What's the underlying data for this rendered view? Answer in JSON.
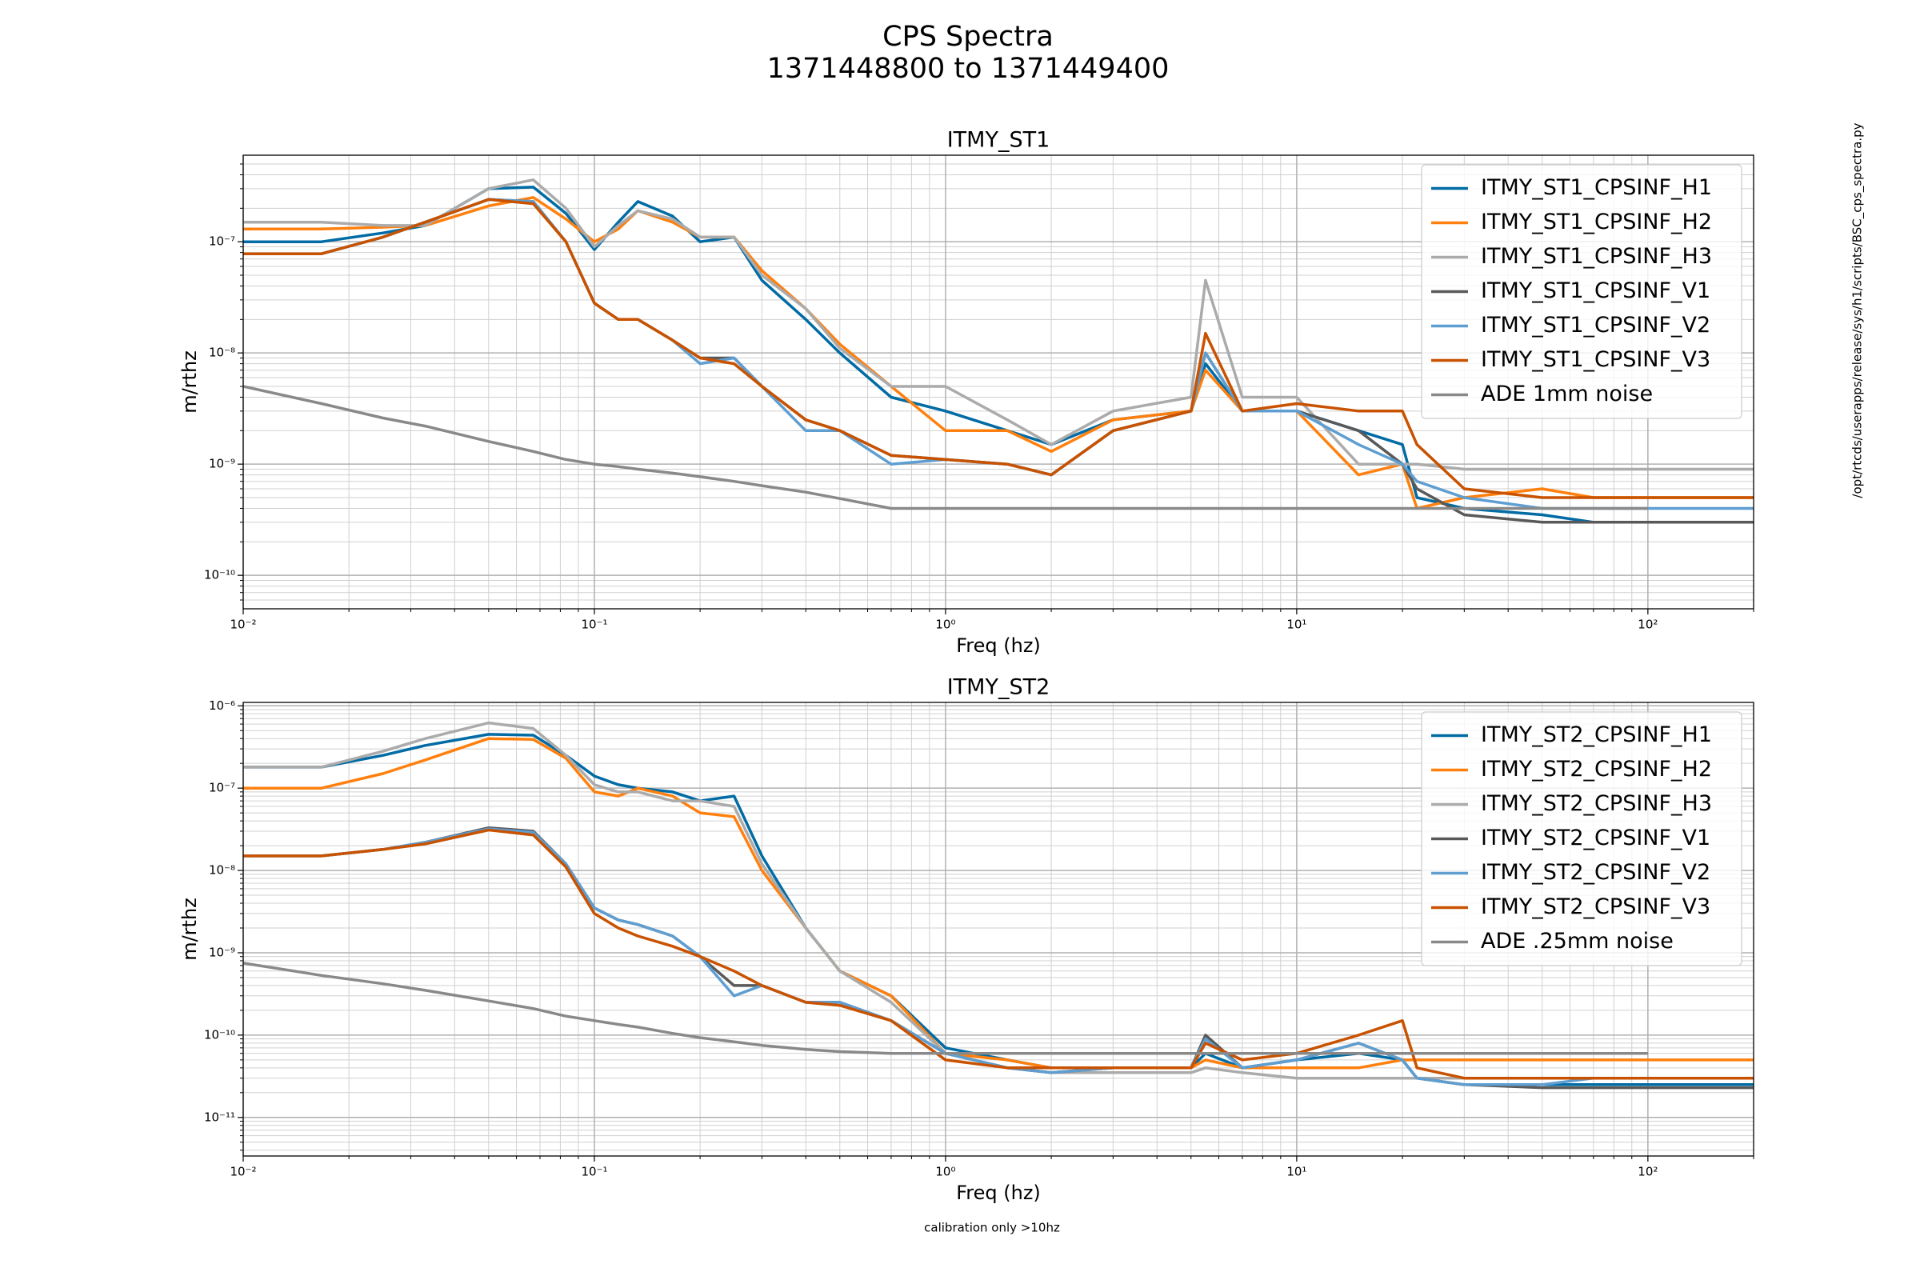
{
  "title": "CPS Spectra",
  "subtitle": "1371448800 to 1371449400",
  "side_note": "/opt/rtcds/userapps/release/sys/h1/scripts/BSC_cps_spectra.py",
  "footnote": "calibration only >10hz",
  "chart_data": [
    {
      "type": "line",
      "title": "ITMY_ST1",
      "x_label": "Freq (hz)",
      "y_label": "m/rthz",
      "log_x": true,
      "log_y": true,
      "grid": true,
      "legend": "upper right",
      "xlim": [
        0.01,
        200
      ],
      "ylim": [
        5e-11,
        6e-07
      ],
      "xticks": [
        {
          "value": 0.01,
          "label": "10⁻²"
        },
        {
          "value": 0.1,
          "label": "10⁻¹"
        },
        {
          "value": 1,
          "label": "10⁰"
        },
        {
          "value": 10,
          "label": "10¹"
        },
        {
          "value": 100,
          "label": "10²"
        }
      ],
      "yticks": [
        {
          "value": 1e-10,
          "label": "10⁻¹⁰"
        },
        {
          "value": 1e-09,
          "label": "10⁻⁹"
        },
        {
          "value": 1e-08,
          "label": "10⁻⁸"
        },
        {
          "value": 1e-07,
          "label": "10⁻⁷"
        }
      ],
      "xticks_minor": [
        0.02,
        0.03,
        0.04,
        0.05,
        0.06,
        0.07,
        0.08,
        0.09,
        0.2,
        0.3,
        0.4,
        0.5,
        0.6,
        0.7,
        0.8,
        0.9,
        2,
        3,
        4,
        5,
        6,
        7,
        8,
        9,
        20,
        30,
        40,
        50,
        60,
        70,
        80,
        90,
        200
      ],
      "yticks_minor": [
        6e-11,
        7e-11,
        8e-11,
        9e-11,
        2e-10,
        3e-10,
        4e-10,
        5e-10,
        6e-10,
        7e-10,
        8e-10,
        9e-10,
        2e-09,
        3e-09,
        4e-09,
        5e-09,
        6e-09,
        7e-09,
        8e-09,
        9e-09,
        2e-08,
        3e-08,
        4e-08,
        5e-08,
        6e-08,
        7e-08,
        8e-08,
        9e-08,
        2e-07,
        3e-07,
        4e-07,
        5e-07
      ],
      "x": [
        0.01,
        0.0167,
        0.025,
        0.033,
        0.05,
        0.067,
        0.083,
        0.1,
        0.117,
        0.133,
        0.167,
        0.2,
        0.25,
        0.3,
        0.4,
        0.5,
        0.7,
        1,
        1.5,
        2,
        3,
        5,
        5.5,
        7,
        10,
        15,
        20,
        22,
        30,
        50,
        70,
        100,
        200
      ],
      "series": [
        {
          "name": "ITMY_ST1_CPSINF_H1",
          "color": "#006ba4",
          "values": [
            1e-07,
            1e-07,
            1.2e-07,
            1.4e-07,
            3e-07,
            3.1e-07,
            1.8e-07,
            8.5e-08,
            1.5e-07,
            2.3e-07,
            1.7e-07,
            1e-07,
            1.1e-07,
            4.5e-08,
            2e-08,
            1e-08,
            4e-09,
            3e-09,
            2e-09,
            1.5e-09,
            2.5e-09,
            3e-09,
            8e-09,
            3e-09,
            3e-09,
            2e-09,
            1.5e-09,
            5e-10,
            4e-10,
            3.5e-10,
            3e-10,
            3e-10,
            3e-10
          ]
        },
        {
          "name": "ITMY_ST1_CPSINF_H2",
          "color": "#ff800e",
          "values": [
            1.3e-07,
            1.3e-07,
            1.35e-07,
            1.4e-07,
            2.1e-07,
            2.5e-07,
            1.6e-07,
            1e-07,
            1.3e-07,
            1.9e-07,
            1.5e-07,
            1.1e-07,
            1.1e-07,
            5.5e-08,
            2.5e-08,
            1.2e-08,
            5e-09,
            2e-09,
            2e-09,
            1.3e-09,
            2.5e-09,
            3e-09,
            7e-09,
            3e-09,
            3e-09,
            8e-10,
            1e-09,
            4e-10,
            5e-10,
            6e-10,
            5e-10,
            5e-10,
            5e-10
          ]
        },
        {
          "name": "ITMY_ST1_CPSINF_H3",
          "color": "#ababab",
          "values": [
            1.5e-07,
            1.5e-07,
            1.4e-07,
            1.4e-07,
            3e-07,
            3.6e-07,
            2e-07,
            9e-08,
            1.4e-07,
            1.9e-07,
            1.6e-07,
            1.1e-07,
            1.1e-07,
            5e-08,
            2.5e-08,
            1.1e-08,
            5e-09,
            5e-09,
            2.5e-09,
            1.5e-09,
            3e-09,
            4e-09,
            4.5e-08,
            4e-09,
            4e-09,
            1e-09,
            1e-09,
            1e-09,
            9e-10,
            9e-10,
            9e-10,
            9e-10,
            9e-10
          ]
        },
        {
          "name": "ITMY_ST1_CPSINF_V1",
          "color": "#595959",
          "values": [
            7.8e-08,
            7.8e-08,
            1.1e-07,
            1.5e-07,
            2.4e-07,
            2.3e-07,
            1e-07,
            2.8e-08,
            2e-08,
            2e-08,
            1.3e-08,
            9e-09,
            9e-09,
            5e-09,
            2.5e-09,
            2e-09,
            1.2e-09,
            1.1e-09,
            1e-09,
            8e-10,
            2e-09,
            3e-09,
            1e-08,
            3e-09,
            3e-09,
            2e-09,
            1e-09,
            6e-10,
            3.5e-10,
            3e-10,
            3e-10,
            3e-10,
            3e-10
          ]
        },
        {
          "name": "ITMY_ST1_CPSINF_V2",
          "color": "#5f9ed1",
          "values": [
            7.8e-08,
            7.8e-08,
            1.1e-07,
            1.5e-07,
            2.4e-07,
            2.3e-07,
            1e-07,
            2.8e-08,
            2e-08,
            2e-08,
            1.3e-08,
            8e-09,
            9e-09,
            5e-09,
            2e-09,
            2e-09,
            1e-09,
            1.1e-09,
            1e-09,
            8e-10,
            2e-09,
            3e-09,
            1e-08,
            3e-09,
            3e-09,
            1.5e-09,
            1e-09,
            7e-10,
            5e-10,
            4e-10,
            4e-10,
            4e-10,
            4e-10
          ]
        },
        {
          "name": "ITMY_ST1_CPSINF_V3",
          "color": "#c85200",
          "values": [
            7.8e-08,
            7.8e-08,
            1.1e-07,
            1.5e-07,
            2.4e-07,
            2.2e-07,
            1e-07,
            2.8e-08,
            2e-08,
            2e-08,
            1.3e-08,
            9e-09,
            8e-09,
            5e-09,
            2.5e-09,
            2e-09,
            1.2e-09,
            1.1e-09,
            1e-09,
            8e-10,
            2e-09,
            3e-09,
            1.5e-08,
            3e-09,
            3.5e-09,
            3e-09,
            3e-09,
            1.5e-09,
            6e-10,
            5e-10,
            5e-10,
            5e-10,
            5e-10
          ]
        },
        {
          "name": "ADE 1mm noise",
          "color": "#898989",
          "values": [
            5e-09,
            3.5e-09,
            2.6e-09,
            2.2e-09,
            1.6e-09,
            1.3e-09,
            1.1e-09,
            1e-09,
            9.5e-10,
            9e-10,
            8.3e-10,
            7.7e-10,
            7e-10,
            6.4e-10,
            5.6e-10,
            4.9e-10,
            4e-10,
            4e-10,
            4e-10,
            4e-10,
            4e-10,
            4e-10,
            4e-10,
            4e-10,
            4e-10,
            4e-10,
            4e-10,
            4e-10,
            4e-10,
            4e-10,
            4e-10,
            4e-10,
            null
          ]
        }
      ]
    },
    {
      "type": "line",
      "title": "ITMY_ST2",
      "x_label": "Freq (hz)",
      "y_label": "m/rthz",
      "log_x": true,
      "log_y": true,
      "grid": true,
      "legend": "upper right",
      "xlim": [
        0.01,
        200
      ],
      "ylim": [
        3.4e-12,
        1.1e-06
      ],
      "xticks": [
        {
          "value": 0.01,
          "label": "10⁻²"
        },
        {
          "value": 0.1,
          "label": "10⁻¹"
        },
        {
          "value": 1,
          "label": "10⁰"
        },
        {
          "value": 10,
          "label": "10¹"
        },
        {
          "value": 100,
          "label": "10²"
        }
      ],
      "yticks": [
        {
          "value": 1e-11,
          "label": "10⁻¹¹"
        },
        {
          "value": 1e-10,
          "label": "10⁻¹⁰"
        },
        {
          "value": 1e-09,
          "label": "10⁻⁹"
        },
        {
          "value": 1e-08,
          "label": "10⁻⁸"
        },
        {
          "value": 1e-07,
          "label": "10⁻⁷"
        },
        {
          "value": 1e-06,
          "label": "10⁻⁶"
        }
      ],
      "xticks_minor": [
        0.02,
        0.03,
        0.04,
        0.05,
        0.06,
        0.07,
        0.08,
        0.09,
        0.2,
        0.3,
        0.4,
        0.5,
        0.6,
        0.7,
        0.8,
        0.9,
        2,
        3,
        4,
        5,
        6,
        7,
        8,
        9,
        20,
        30,
        40,
        50,
        60,
        70,
        80,
        90,
        200
      ],
      "yticks_minor": [
        4e-12,
        5e-12,
        6e-12,
        7e-12,
        8e-12,
        9e-12,
        2e-11,
        3e-11,
        4e-11,
        5e-11,
        6e-11,
        7e-11,
        8e-11,
        9e-11,
        2e-10,
        3e-10,
        4e-10,
        5e-10,
        6e-10,
        7e-10,
        8e-10,
        9e-10,
        2e-09,
        3e-09,
        4e-09,
        5e-09,
        6e-09,
        7e-09,
        8e-09,
        9e-09,
        2e-08,
        3e-08,
        4e-08,
        5e-08,
        6e-08,
        7e-08,
        8e-08,
        9e-08,
        2e-07,
        3e-07,
        4e-07,
        5e-07,
        6e-07,
        7e-07,
        8e-07,
        9e-07
      ],
      "x": [
        0.01,
        0.0167,
        0.025,
        0.033,
        0.05,
        0.067,
        0.083,
        0.1,
        0.117,
        0.133,
        0.167,
        0.2,
        0.25,
        0.3,
        0.4,
        0.5,
        0.7,
        1,
        1.5,
        2,
        3,
        5,
        5.5,
        7,
        10,
        15,
        20,
        22,
        30,
        50,
        70,
        100,
        200
      ],
      "series": [
        {
          "name": "ITMY_ST2_CPSINF_H1",
          "color": "#006ba4",
          "values": [
            1.8e-07,
            1.8e-07,
            2.5e-07,
            3.3e-07,
            4.5e-07,
            4.4e-07,
            2.5e-07,
            1.4e-07,
            1.1e-07,
            1e-07,
            9e-08,
            7e-08,
            8e-08,
            1.5e-08,
            2e-09,
            6e-10,
            3e-10,
            7e-11,
            5e-11,
            4e-11,
            4e-11,
            4e-11,
            6e-11,
            4e-11,
            5e-11,
            6e-11,
            5e-11,
            3e-11,
            2.5e-11,
            2.5e-11,
            2.5e-11,
            2.5e-11,
            2.5e-11
          ]
        },
        {
          "name": "ITMY_ST2_CPSINF_H2",
          "color": "#ff800e",
          "values": [
            1e-07,
            1e-07,
            1.5e-07,
            2.2e-07,
            4e-07,
            3.9e-07,
            2.3e-07,
            9e-08,
            8e-08,
            1e-07,
            8e-08,
            5e-08,
            4.5e-08,
            1e-08,
            2e-09,
            6e-10,
            3e-10,
            6e-11,
            5e-11,
            4e-11,
            4e-11,
            4e-11,
            5e-11,
            4e-11,
            4e-11,
            4e-11,
            5e-11,
            5e-11,
            5e-11,
            5e-11,
            5e-11,
            5e-11,
            5e-11
          ]
        },
        {
          "name": "ITMY_ST2_CPSINF_H3",
          "color": "#ababab",
          "values": [
            1.8e-07,
            1.8e-07,
            2.8e-07,
            4e-07,
            6.2e-07,
            5.3e-07,
            2.5e-07,
            1.1e-07,
            9e-08,
            9e-08,
            7e-08,
            7e-08,
            6e-08,
            1.2e-08,
            2e-09,
            6e-10,
            2.5e-10,
            6e-11,
            4e-11,
            3.5e-11,
            3.5e-11,
            3.5e-11,
            4e-11,
            3.5e-11,
            3e-11,
            3e-11,
            3e-11,
            3e-11,
            3e-11,
            3e-11,
            3e-11,
            3e-11,
            3e-11
          ]
        },
        {
          "name": "ITMY_ST2_CPSINF_V1",
          "color": "#595959",
          "values": [
            1.5e-08,
            1.5e-08,
            1.8e-08,
            2.2e-08,
            3.3e-08,
            3e-08,
            1.2e-08,
            3.5e-09,
            2.5e-09,
            2.2e-09,
            1.6e-09,
            9e-10,
            4e-10,
            4e-10,
            2.5e-10,
            2.5e-10,
            1.5e-10,
            6e-11,
            4e-11,
            3.5e-11,
            4e-11,
            4e-11,
            1e-10,
            4e-11,
            5e-11,
            8e-11,
            5e-11,
            3e-11,
            2.5e-11,
            2.3e-11,
            2.3e-11,
            2.3e-11,
            2.3e-11
          ]
        },
        {
          "name": "ITMY_ST2_CPSINF_V2",
          "color": "#5f9ed1",
          "values": [
            1.5e-08,
            1.5e-08,
            1.8e-08,
            2.2e-08,
            3.2e-08,
            2.9e-08,
            1.2e-08,
            3.5e-09,
            2.5e-09,
            2.2e-09,
            1.6e-09,
            9e-10,
            3e-10,
            4e-10,
            2.5e-10,
            2.5e-10,
            1.5e-10,
            6e-11,
            4e-11,
            3.5e-11,
            4e-11,
            4e-11,
            9e-11,
            4e-11,
            5e-11,
            8e-11,
            5e-11,
            3e-11,
            2.5e-11,
            2.5e-11,
            3e-11,
            3e-11,
            3e-11
          ]
        },
        {
          "name": "ITMY_ST2_CPSINF_V3",
          "color": "#c85200",
          "values": [
            1.5e-08,
            1.5e-08,
            1.8e-08,
            2.1e-08,
            3.1e-08,
            2.7e-08,
            1.1e-08,
            3e-09,
            2e-09,
            1.6e-09,
            1.2e-09,
            9e-10,
            6e-10,
            4e-10,
            2.5e-10,
            2.3e-10,
            1.5e-10,
            5e-11,
            4e-11,
            4e-11,
            4e-11,
            4e-11,
            8e-11,
            5e-11,
            6e-11,
            1e-10,
            1.5e-10,
            4e-11,
            3e-11,
            3e-11,
            3e-11,
            3e-11,
            3e-11
          ]
        },
        {
          "name": "ADE .25mm noise",
          "color": "#898989",
          "values": [
            7.5e-10,
            5.3e-10,
            4.2e-10,
            3.5e-10,
            2.6e-10,
            2.1e-10,
            1.7e-10,
            1.5e-10,
            1.35e-10,
            1.25e-10,
            1.05e-10,
            9.3e-11,
            8.3e-11,
            7.5e-11,
            6.7e-11,
            6.3e-11,
            6e-11,
            6e-11,
            6e-11,
            6e-11,
            6e-11,
            6e-11,
            6e-11,
            6e-11,
            6e-11,
            6e-11,
            6e-11,
            6e-11,
            6e-11,
            6e-11,
            6e-11,
            6e-11,
            null
          ]
        }
      ]
    }
  ]
}
